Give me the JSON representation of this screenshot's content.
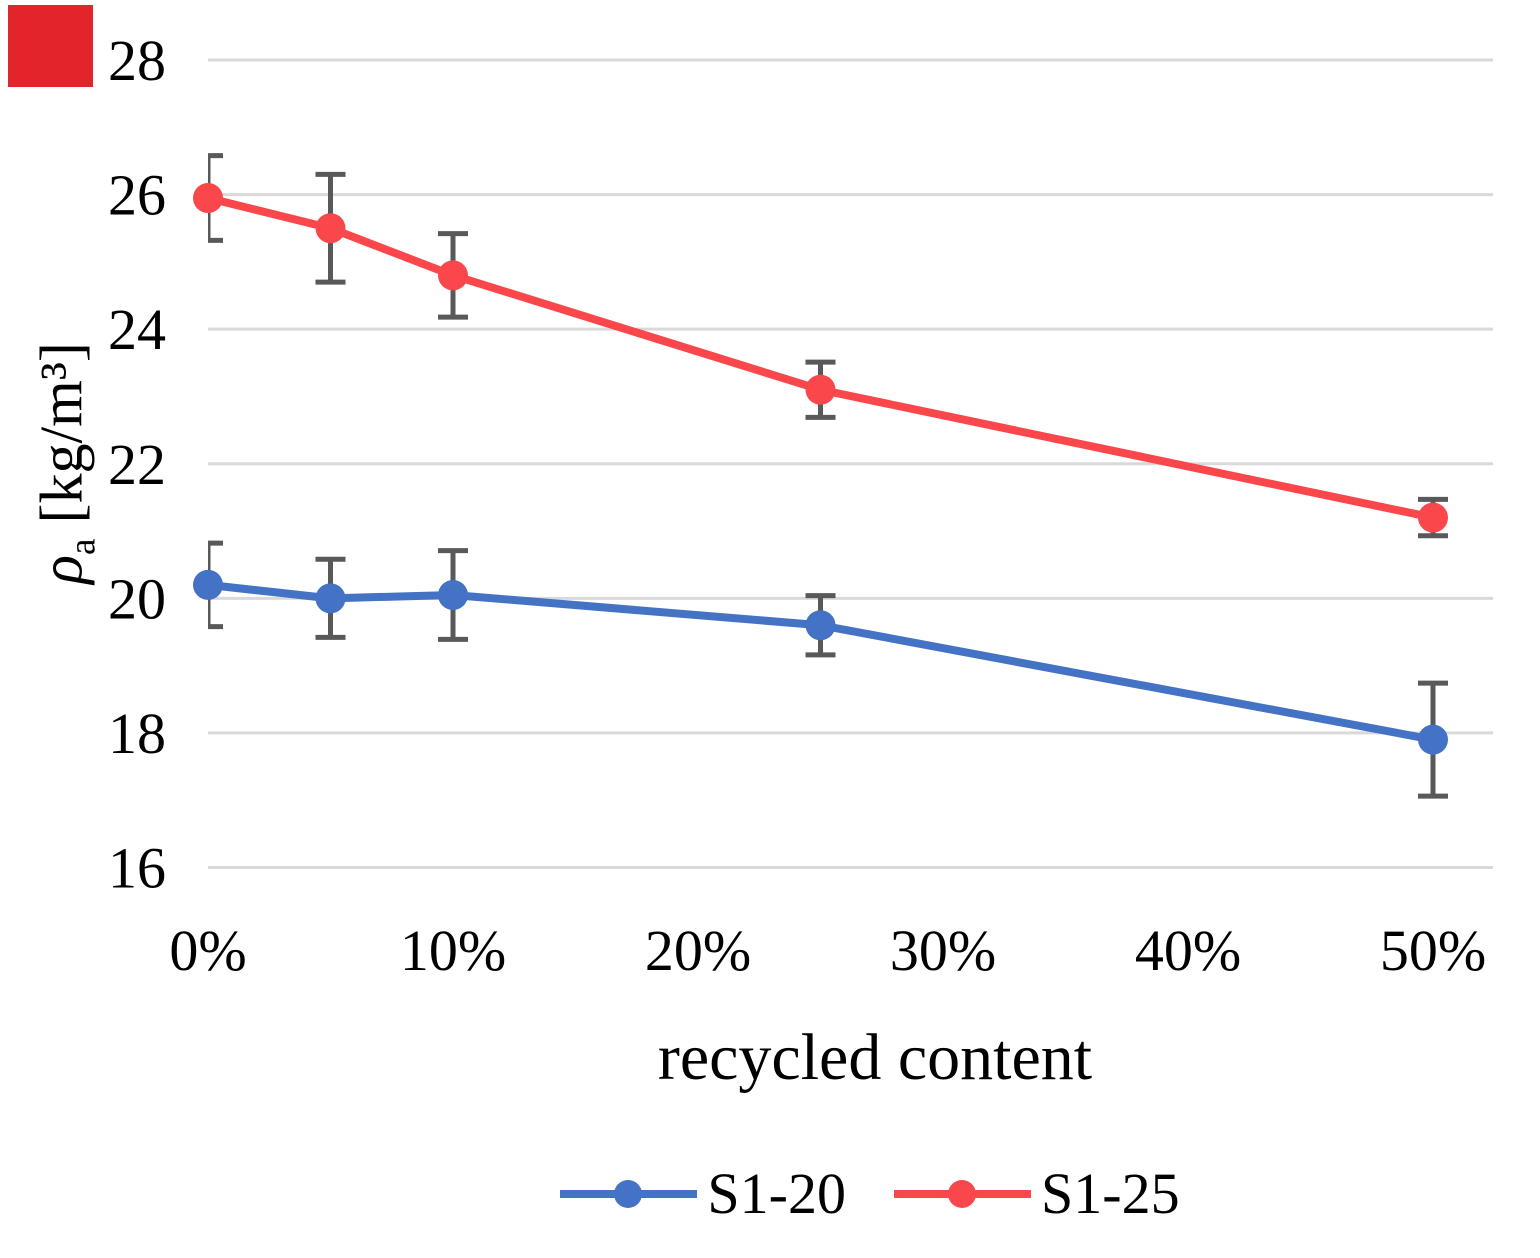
{
  "corner_marker": {
    "color": "#E2242B"
  },
  "chart_data": {
    "type": "line",
    "title": "",
    "xlabel": "recycled content",
    "ylabel": "ρa [kg/m³]",
    "ylabel_parts": {
      "symbol": "ρ",
      "subscript": "a",
      "units": "[kg/m³]"
    },
    "x": [
      0,
      5,
      10,
      25,
      50
    ],
    "x_unit": "%",
    "series": [
      {
        "name": "S1-20",
        "color": "#4472C4",
        "values": [
          20.2,
          20.0,
          20.05,
          19.6,
          17.9
        ],
        "error": [
          0.62,
          0.58,
          0.66,
          0.44,
          0.84
        ]
      },
      {
        "name": "S1-25",
        "color": "#FA474B",
        "values": [
          25.95,
          25.5,
          24.8,
          23.1,
          21.2
        ],
        "error": [
          0.63,
          0.8,
          0.62,
          0.41,
          0.27
        ]
      }
    ],
    "xticks": [
      {
        "label": "0%",
        "value": 0
      },
      {
        "label": "10%",
        "value": 10
      },
      {
        "label": "20%",
        "value": 20
      },
      {
        "label": "30%",
        "value": 30
      },
      {
        "label": "40%",
        "value": 40
      },
      {
        "label": "50%",
        "value": 50
      }
    ],
    "yticks": [
      "28",
      "26",
      "24",
      "22",
      "20",
      "18",
      "16"
    ],
    "ytick_values": [
      28,
      26,
      24,
      22,
      20,
      18,
      16
    ],
    "ylim": [
      16,
      28
    ],
    "xlim": [
      0,
      52.5
    ],
    "grid": true,
    "grid_color": "#D9D9D9",
    "error_bar_color": "#595959",
    "text_color": "#000000",
    "background": "#FFFFFF",
    "legend_position": "bottom",
    "legend_labels": [
      "S1-20",
      "S1-25"
    ]
  }
}
